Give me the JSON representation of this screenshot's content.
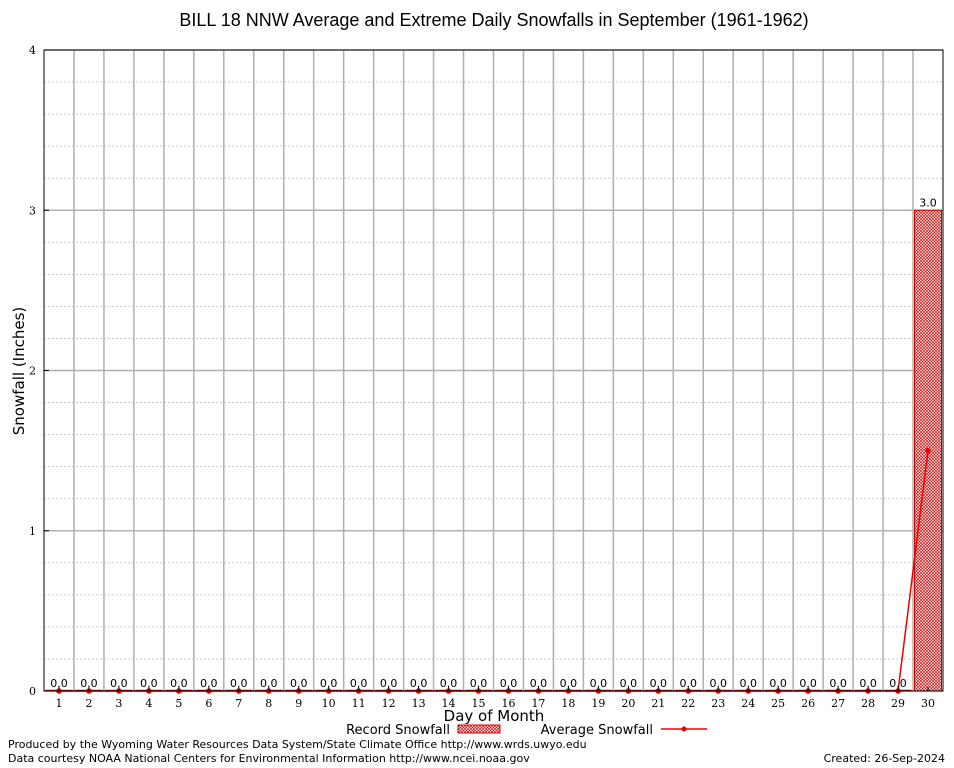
{
  "chart_data": {
    "type": "bar",
    "title": "BILL 18 NNW Average and Extreme Daily Snowfalls in September (1961-1962)",
    "xlabel": "Day of Month",
    "ylabel": "Snowfall (Inches)",
    "ylim": [
      0,
      4
    ],
    "yticks": [
      "0",
      "1",
      "2",
      "3",
      "4"
    ],
    "categories": [
      "1",
      "2",
      "3",
      "4",
      "5",
      "6",
      "7",
      "8",
      "9",
      "10",
      "11",
      "12",
      "13",
      "14",
      "15",
      "16",
      "17",
      "18",
      "19",
      "20",
      "21",
      "22",
      "23",
      "24",
      "25",
      "26",
      "27",
      "28",
      "29",
      "30"
    ],
    "grid": true,
    "legend_placement": "bottom",
    "series": [
      {
        "name": "Record Snowfall",
        "type": "bar",
        "color": "#cc0000",
        "values": [
          0,
          0,
          0,
          0,
          0,
          0,
          0,
          0,
          0,
          0,
          0,
          0,
          0,
          0,
          0,
          0,
          0,
          0,
          0,
          0,
          0,
          0,
          0,
          0,
          0,
          0,
          0,
          0,
          0,
          3.0
        ],
        "labels": [
          "0.0",
          "0.0",
          "0.0",
          "0.0",
          "0.0",
          "0.0",
          "0.0",
          "0.0",
          "0.0",
          "0.0",
          "0.0",
          "0.0",
          "0.0",
          "0.0",
          "0.0",
          "0.0",
          "0.0",
          "0.0",
          "0.0",
          "0.0",
          "0.0",
          "0.0",
          "0.0",
          "0.0",
          "0.0",
          "0.0",
          "0.0",
          "0.0",
          "0.0",
          "3.0"
        ]
      },
      {
        "name": "Average Snowfall",
        "type": "line",
        "color": "#ee0000",
        "values": [
          0,
          0,
          0,
          0,
          0,
          0,
          0,
          0,
          0,
          0,
          0,
          0,
          0,
          0,
          0,
          0,
          0,
          0,
          0,
          0,
          0,
          0,
          0,
          0,
          0,
          0,
          0,
          0,
          0,
          1.5
        ]
      }
    ]
  },
  "footer": {
    "produced_by": "Produced by the Wyoming Water Resources Data System/State Climate Office http://www.wrds.uwyo.edu",
    "courtesy": "Data courtesy NOAA National Centers for Environmental Information http://www.ncei.noaa.gov",
    "created": "Created:  26-Sep-2024"
  }
}
